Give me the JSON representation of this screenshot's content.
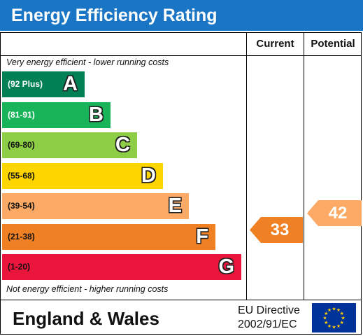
{
  "title": "Energy Efficiency Rating",
  "columns": {
    "current": "Current",
    "potential": "Potential"
  },
  "notes": {
    "top": "Very energy efficient - lower running costs",
    "bottom": "Not energy efficient - higher running costs"
  },
  "bands": [
    {
      "range": "(92 Plus)",
      "letter": "A",
      "color": "#008054",
      "range_color": "#ffffff"
    },
    {
      "range": "(81-91)",
      "letter": "B",
      "color": "#19b459",
      "range_color": "#ffffff"
    },
    {
      "range": "(69-80)",
      "letter": "C",
      "color": "#8dce46",
      "range_color": "#111111"
    },
    {
      "range": "(55-68)",
      "letter": "D",
      "color": "#ffd500",
      "range_color": "#111111"
    },
    {
      "range": "(39-54)",
      "letter": "E",
      "color": "#fcaa65",
      "range_color": "#111111"
    },
    {
      "range": "(21-38)",
      "letter": "F",
      "color": "#ef8023",
      "range_color": "#111111"
    },
    {
      "range": "(1-20)",
      "letter": "G",
      "color": "#e9153b",
      "range_color": "#111111"
    }
  ],
  "current": {
    "value": "33",
    "color": "#ef8023"
  },
  "potential": {
    "value": "42",
    "color": "#fcaa65"
  },
  "footer": {
    "region": "England & Wales",
    "directive_line1": "EU Directive",
    "directive_line2": "2002/91/EC"
  },
  "flag": {
    "field": "#003399",
    "stars": "#ffcc00"
  }
}
